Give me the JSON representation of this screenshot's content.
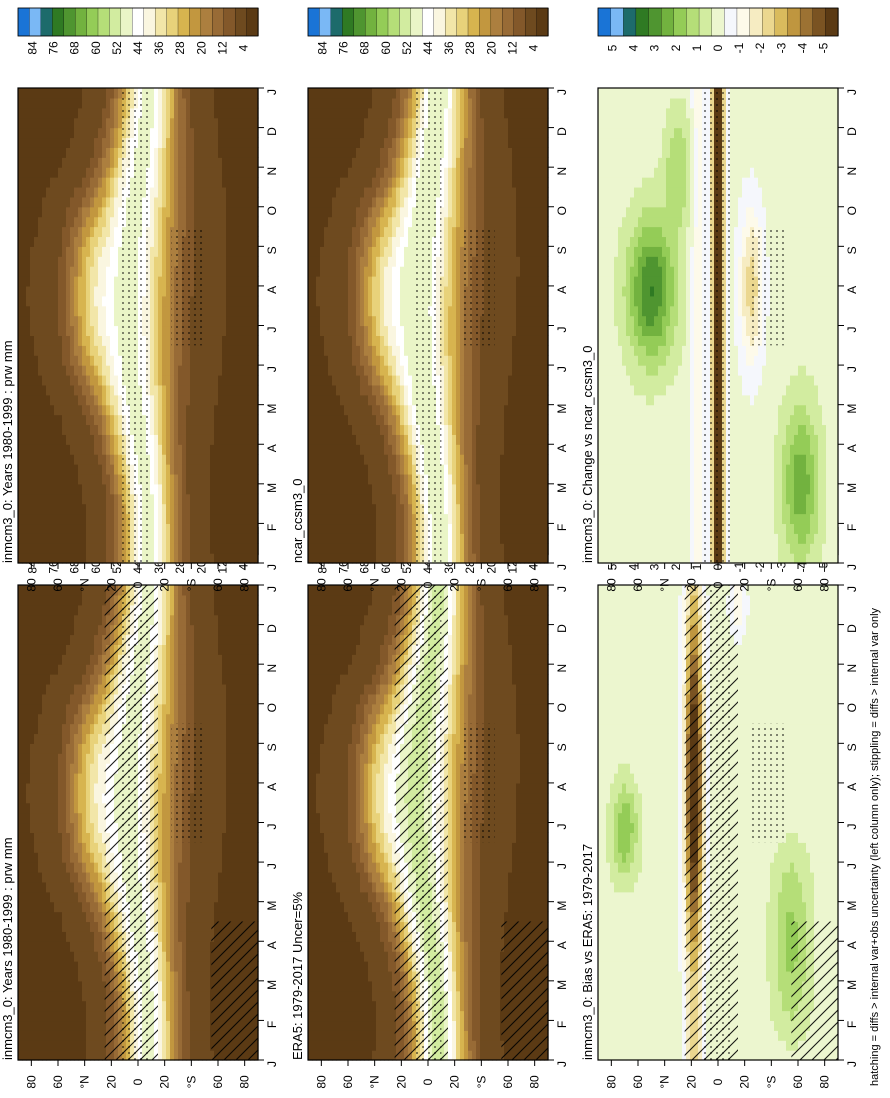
{
  "figure": {
    "footnote": "hatching = diffs > internal var+obs uncertainty (left column only); stippling = diffs > internal var only",
    "rotation": "landscape figure rotated 90 degrees clockwise"
  },
  "colors": {
    "abs_scale": [
      "#5b3a14",
      "#6e4a1f",
      "#83582a",
      "#986b36",
      "#ac7f3f",
      "#c2973f",
      "#d7b44f",
      "#e8d27a",
      "#f2e6a8",
      "#faf6e0",
      "#ffffff",
      "#eaf5c7",
      "#d2eca0",
      "#b5de78",
      "#94cc57",
      "#72b23f",
      "#4f9530",
      "#2f7a23",
      "#1d6b6b",
      "#7ab8f5",
      "#1a74d6"
    ],
    "diff_scale": [
      "#5b3a14",
      "#7a5322",
      "#9c7233",
      "#bf963f",
      "#d9bb5d",
      "#ebd78f",
      "#f6ecc2",
      "#fdfaea",
      "#f5f7fc",
      "#ecf6cf",
      "#d2eca0",
      "#b5de78",
      "#94cc57",
      "#72b23f",
      "#4f9530",
      "#2f7a23",
      "#1d6b6b",
      "#7ab8f5",
      "#1a74d6"
    ]
  },
  "chart_data": [
    {
      "type": "heatmap",
      "id": "model_abs",
      "title": "inmcm3_0: Years 1980-1999 : prw mm",
      "x_categories": [
        "J",
        "F",
        "M",
        "A",
        "M",
        "J",
        "J",
        "A",
        "S",
        "O",
        "N",
        "D",
        "J"
      ],
      "y_tick_labels": [
        "80",
        "60",
        "°N",
        "20",
        "0",
        "20",
        "°S",
        "60",
        "80"
      ],
      "y_range": [
        -90,
        90
      ],
      "variable": "prw",
      "units": "mm",
      "colorbar_labels": [
        "84",
        "76",
        "68",
        "60",
        "52",
        "44",
        "36",
        "28",
        "20",
        "12",
        "4"
      ],
      "value_range": [
        0,
        88
      ],
      "peak_equator_mm": 48,
      "pole_mm": 4,
      "hatching": true,
      "stippling": true
    },
    {
      "type": "heatmap",
      "id": "obs_abs",
      "title": "ERA5: 1979-2017 Uncer=5%",
      "x_categories": [
        "J",
        "F",
        "M",
        "A",
        "M",
        "J",
        "J",
        "A",
        "S",
        "O",
        "N",
        "D",
        "J"
      ],
      "y_tick_labels": [
        "80",
        "60",
        "°N",
        "20",
        "0",
        "20",
        "°S",
        "60",
        "80"
      ],
      "y_range": [
        -90,
        90
      ],
      "variable": "prw",
      "units": "mm",
      "colorbar_labels": [
        "84",
        "76",
        "68",
        "60",
        "52",
        "44",
        "36",
        "28",
        "20",
        "12",
        "4"
      ],
      "value_range": [
        0,
        88
      ],
      "peak_equator_mm": 52,
      "pole_mm": 4,
      "hatching": true,
      "stippling": true
    },
    {
      "type": "heatmap",
      "id": "bias",
      "title": "inmcm3_0: Bias vs ERA5: 1979-2017",
      "x_categories": [
        "J",
        "F",
        "M",
        "A",
        "M",
        "J",
        "J",
        "A",
        "S",
        "O",
        "N",
        "D",
        "J"
      ],
      "y_tick_labels": [
        "80",
        "60",
        "°N",
        "20",
        "0",
        "20",
        "°S",
        "60",
        "80"
      ],
      "y_range": [
        -90,
        90
      ],
      "colorbar_labels": [
        "5",
        "4",
        "3",
        "2",
        "1",
        "0",
        "-1",
        "-2",
        "-3",
        "-4",
        "-5"
      ],
      "value_range": [
        -5.5,
        5.5
      ],
      "hatching": true,
      "stippling": true
    },
    {
      "type": "heatmap",
      "id": "model_abs_copy",
      "title": "inmcm3_0: Years 1980-1999 : prw mm",
      "x_categories": [
        "J",
        "F",
        "M",
        "A",
        "M",
        "J",
        "J",
        "A",
        "S",
        "O",
        "N",
        "D",
        "J"
      ],
      "y_tick_labels": [
        "80",
        "60",
        "°N",
        "20",
        "0",
        "20",
        "°S",
        "60",
        "80"
      ],
      "y_range": [
        -90,
        90
      ],
      "variable": "prw",
      "units": "mm",
      "colorbar_labels": [
        "84",
        "76",
        "68",
        "60",
        "52",
        "44",
        "36",
        "28",
        "20",
        "12",
        "4"
      ],
      "value_range": [
        0,
        88
      ],
      "peak_equator_mm": 48,
      "pole_mm": 4,
      "hatching": false,
      "stippling": true
    },
    {
      "type": "heatmap",
      "id": "ref_abs",
      "title": "ncar_ccsm3_0",
      "x_categories": [
        "J",
        "F",
        "M",
        "A",
        "M",
        "J",
        "J",
        "A",
        "S",
        "O",
        "N",
        "D",
        "J"
      ],
      "y_tick_labels": [
        "80",
        "60",
        "°N",
        "20",
        "0",
        "20",
        "°S",
        "60",
        "80"
      ],
      "y_range": [
        -90,
        90
      ],
      "variable": "prw",
      "units": "mm",
      "colorbar_labels": [
        "84",
        "76",
        "68",
        "60",
        "52",
        "44",
        "36",
        "28",
        "20",
        "12",
        "4"
      ],
      "value_range": [
        0,
        88
      ],
      "peak_equator_mm": 50,
      "pole_mm": 4,
      "hatching": false,
      "stippling": true
    },
    {
      "type": "heatmap",
      "id": "change",
      "title": "inmcm3_0: Change vs ncar_ccsm3_0",
      "x_categories": [
        "J",
        "F",
        "M",
        "A",
        "M",
        "J",
        "J",
        "A",
        "S",
        "O",
        "N",
        "D",
        "J"
      ],
      "y_tick_labels": [
        "80",
        "60",
        "°N",
        "20",
        "0",
        "20",
        "°S",
        "60",
        "80"
      ],
      "y_range": [
        -90,
        90
      ],
      "colorbar_labels": [
        "5",
        "4",
        "3",
        "2",
        "1",
        "0",
        "-1",
        "-2",
        "-3",
        "-4",
        "-5"
      ],
      "value_range": [
        -5.5,
        5.5
      ],
      "hatching": false,
      "stippling": true
    }
  ]
}
